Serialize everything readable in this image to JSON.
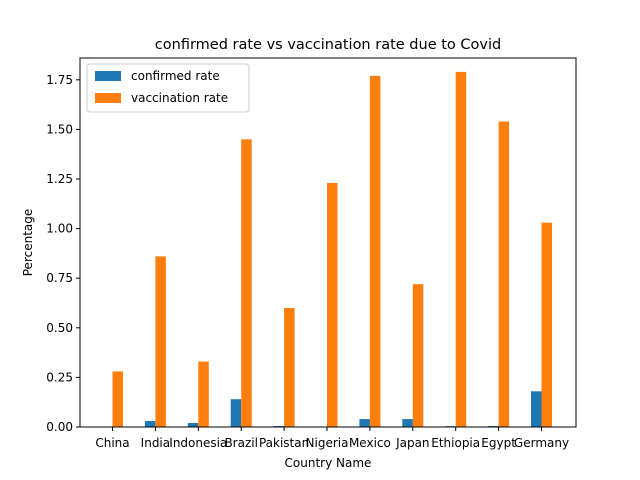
{
  "chart_data": {
    "type": "bar",
    "title": "confirmed rate vs vaccination rate due to Covid",
    "xlabel": "Country Name",
    "ylabel": "Percentage",
    "ylim": [
      0,
      1.86
    ],
    "yticks": [
      "0.00",
      "0.25",
      "0.50",
      "0.75",
      "1.00",
      "1.25",
      "1.50",
      "1.75"
    ],
    "legend_position": "top-left",
    "grid": false,
    "categories": [
      "China",
      "India",
      "Indonesia",
      "Brazil",
      "Pakistan",
      "Nigeria",
      "Mexico",
      "Japan",
      "Ethiopia",
      "Egypt",
      "Germany"
    ],
    "series": [
      {
        "name": "confirmed rate",
        "color": "#1f77b4",
        "values": [
          0.0,
          0.03,
          0.02,
          0.14,
          0.005,
          0.001,
          0.04,
          0.04,
          0.004,
          0.005,
          0.18
        ]
      },
      {
        "name": "vaccination rate",
        "color": "#ff7f0e",
        "values": [
          0.28,
          0.86,
          0.33,
          1.45,
          0.6,
          1.23,
          1.77,
          0.72,
          1.79,
          1.54,
          1.03
        ]
      }
    ]
  }
}
